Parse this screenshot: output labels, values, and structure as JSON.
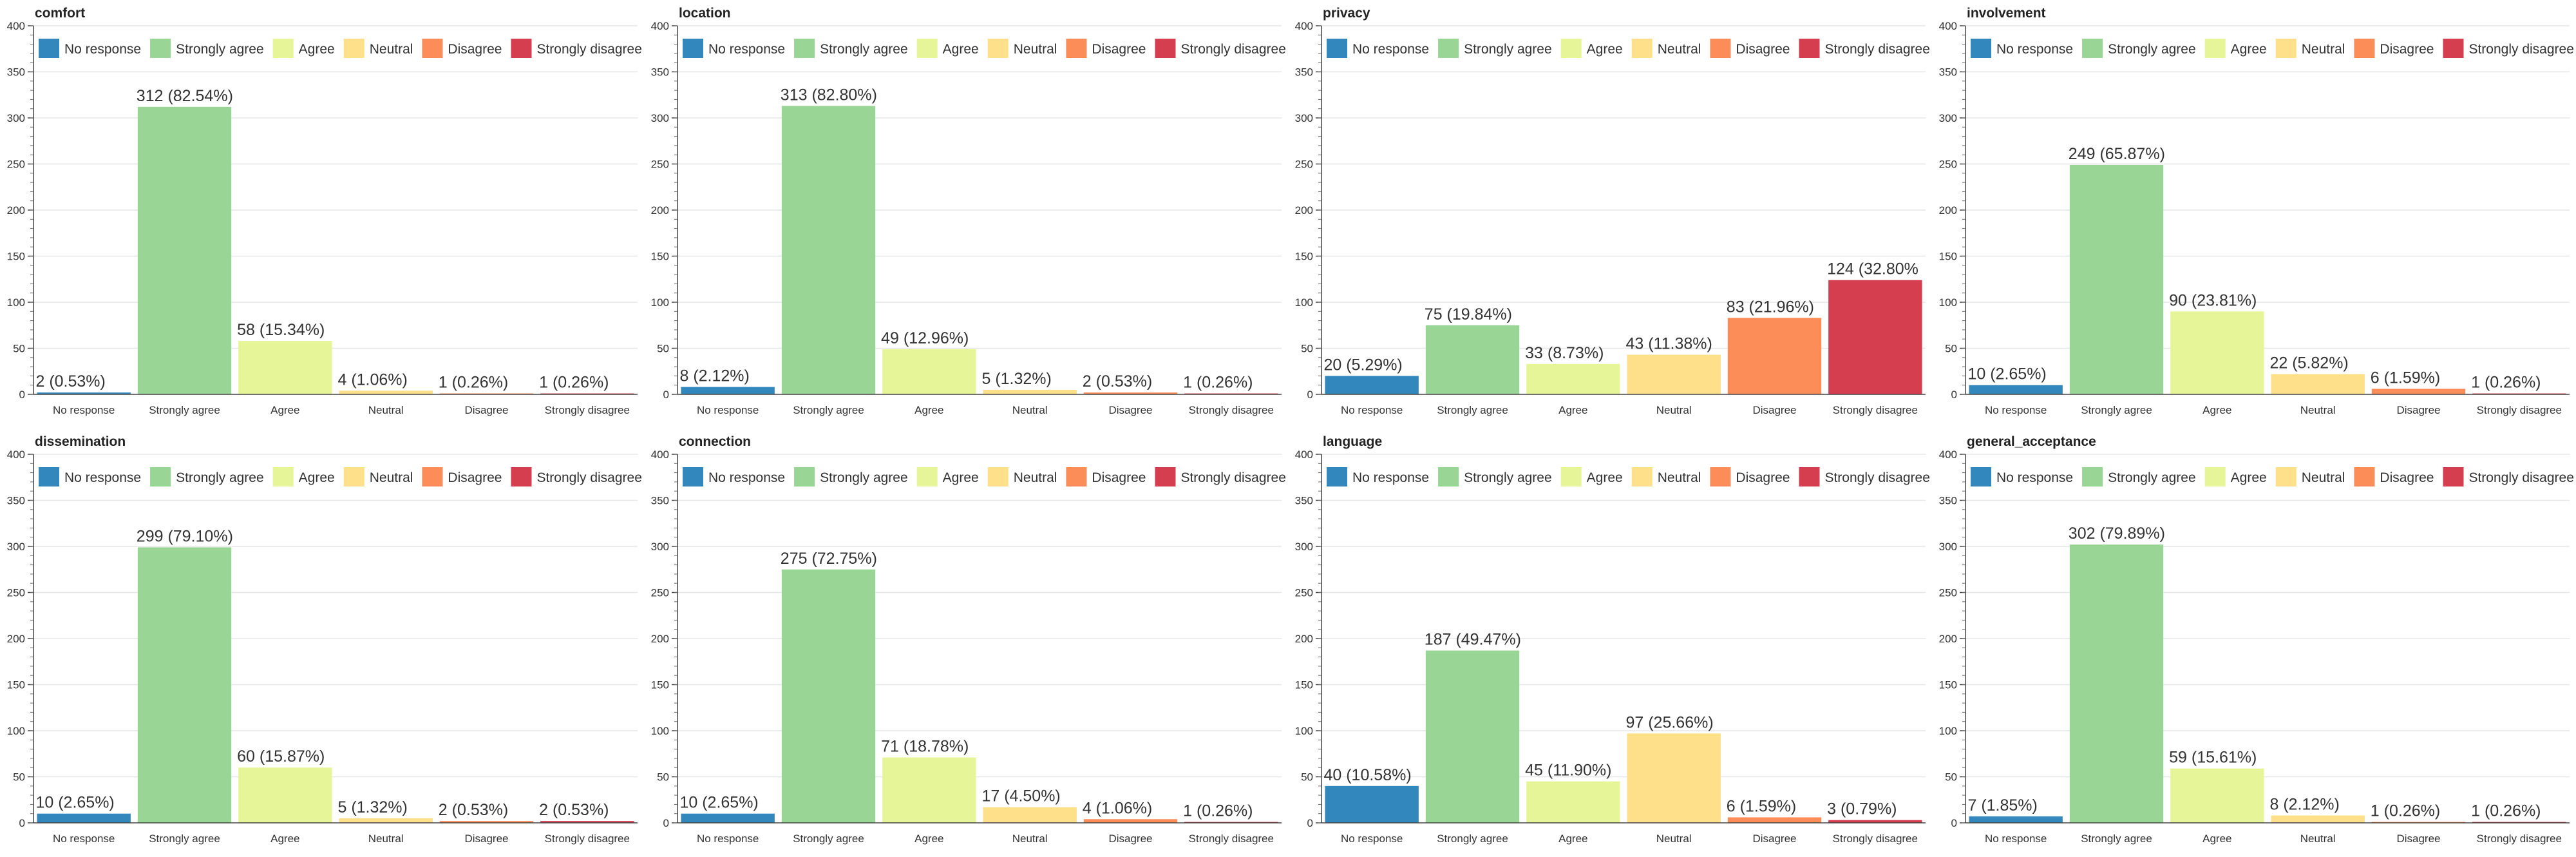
{
  "colors": {
    "No response": "#3288bd",
    "Strongly agree": "#99d594",
    "Agree": "#e6f598",
    "Neutral": "#fee08b",
    "Disagree": "#fc8d59",
    "Strongly disagree": "#d53e4f"
  },
  "chart_data": [
    {
      "type": "bar",
      "title": "comfort",
      "categories": [
        "No response",
        "Strongly agree",
        "Agree",
        "Neutral",
        "Disagree",
        "Strongly disagree"
      ],
      "values": [
        2,
        312,
        58,
        4,
        1,
        1
      ],
      "labels": [
        "2 (0.53%)",
        "312 (82.54%)",
        "58 (15.34%)",
        "4 (1.06%)",
        "1 (0.26%)",
        "1 (0.26%)"
      ],
      "legend": [
        "No response",
        "Strongly agree",
        "Agree",
        "Neutral",
        "Disagree",
        "Strongly disagree"
      ],
      "ylim": [
        0,
        400
      ],
      "yticks": [
        "0",
        "50",
        "100",
        "150",
        "200",
        "250",
        "300",
        "350",
        "400"
      ]
    },
    {
      "type": "bar",
      "title": "location",
      "categories": [
        "No response",
        "Strongly agree",
        "Agree",
        "Neutral",
        "Disagree",
        "Strongly disagree"
      ],
      "values": [
        8,
        313,
        49,
        5,
        2,
        1
      ],
      "labels": [
        "8 (2.12%)",
        "313 (82.80%)",
        "49 (12.96%)",
        "5 (1.32%)",
        "2 (0.53%)",
        "1 (0.26%)"
      ],
      "legend": [
        "No response",
        "Strongly agree",
        "Agree",
        "Neutral",
        "Disagree",
        "Strongly disagree"
      ],
      "ylim": [
        0,
        400
      ],
      "yticks": [
        "0",
        "50",
        "100",
        "150",
        "200",
        "250",
        "300",
        "350",
        "400"
      ]
    },
    {
      "type": "bar",
      "title": "privacy",
      "categories": [
        "No response",
        "Strongly agree",
        "Agree",
        "Neutral",
        "Disagree",
        "Strongly disagree"
      ],
      "values": [
        20,
        75,
        33,
        43,
        83,
        124
      ],
      "labels": [
        "20 (5.29%)",
        "75 (19.84%)",
        "33 (8.73%)",
        "43 (11.38%)",
        "83 (21.96%)",
        "124 (32.80%"
      ],
      "legend": [
        "No response",
        "Strongly agree",
        "Agree",
        "Neutral",
        "Disagree",
        "Strongly disagree"
      ],
      "ylim": [
        0,
        400
      ],
      "yticks": [
        "0",
        "50",
        "100",
        "150",
        "200",
        "250",
        "300",
        "350",
        "400"
      ]
    },
    {
      "type": "bar",
      "title": "involvement",
      "categories": [
        "No response",
        "Strongly agree",
        "Agree",
        "Neutral",
        "Disagree",
        "Strongly disagree"
      ],
      "values": [
        10,
        249,
        90,
        22,
        6,
        1
      ],
      "labels": [
        "10 (2.65%)",
        "249 (65.87%)",
        "90 (23.81%)",
        "22 (5.82%)",
        "6 (1.59%)",
        "1 (0.26%)"
      ],
      "legend": [
        "No response",
        "Strongly agree",
        "Agree",
        "Neutral",
        "Disagree",
        "Strongly disagree"
      ],
      "ylim": [
        0,
        400
      ],
      "yticks": [
        "0",
        "50",
        "100",
        "150",
        "200",
        "250",
        "300",
        "350",
        "400"
      ]
    },
    {
      "type": "bar",
      "title": "dissemination",
      "categories": [
        "No response",
        "Strongly agree",
        "Agree",
        "Neutral",
        "Disagree",
        "Strongly disagree"
      ],
      "values": [
        10,
        299,
        60,
        5,
        2,
        2
      ],
      "labels": [
        "10 (2.65%)",
        "299 (79.10%)",
        "60 (15.87%)",
        "5 (1.32%)",
        "2 (0.53%)",
        "2 (0.53%)"
      ],
      "legend": [
        "No response",
        "Strongly agree",
        "Agree",
        "Neutral",
        "Disagree",
        "Strongly disagree"
      ],
      "ylim": [
        0,
        400
      ],
      "yticks": [
        "0",
        "50",
        "100",
        "150",
        "200",
        "250",
        "300",
        "350",
        "400"
      ]
    },
    {
      "type": "bar",
      "title": "connection",
      "categories": [
        "No response",
        "Strongly agree",
        "Agree",
        "Neutral",
        "Disagree",
        "Strongly disagree"
      ],
      "values": [
        10,
        275,
        71,
        17,
        4,
        1
      ],
      "labels": [
        "10 (2.65%)",
        "275 (72.75%)",
        "71 (18.78%)",
        "17 (4.50%)",
        "4 (1.06%)",
        "1 (0.26%)"
      ],
      "legend": [
        "No response",
        "Strongly agree",
        "Agree",
        "Neutral",
        "Disagree",
        "Strongly disagree"
      ],
      "ylim": [
        0,
        400
      ],
      "yticks": [
        "0",
        "50",
        "100",
        "150",
        "200",
        "250",
        "300",
        "350",
        "400"
      ]
    },
    {
      "type": "bar",
      "title": "language",
      "categories": [
        "No response",
        "Strongly agree",
        "Agree",
        "Neutral",
        "Disagree",
        "Strongly disagree"
      ],
      "values": [
        40,
        187,
        45,
        97,
        6,
        3
      ],
      "labels": [
        "40 (10.58%)",
        "187 (49.47%)",
        "45 (11.90%)",
        "97 (25.66%)",
        "6 (1.59%)",
        "3 (0.79%)"
      ],
      "legend": [
        "No response",
        "Strongly agree",
        "Agree",
        "Neutral",
        "Disagree",
        "Strongly disagree"
      ],
      "ylim": [
        0,
        400
      ],
      "yticks": [
        "0",
        "50",
        "100",
        "150",
        "200",
        "250",
        "300",
        "350",
        "400"
      ]
    },
    {
      "type": "bar",
      "title": "general_acceptance",
      "categories": [
        "No response",
        "Strongly agree",
        "Agree",
        "Neutral",
        "Disagree",
        "Strongly disagree"
      ],
      "values": [
        7,
        302,
        59,
        8,
        1,
        1
      ],
      "labels": [
        "7 (1.85%)",
        "302 (79.89%)",
        "59 (15.61%)",
        "8 (2.12%)",
        "1 (0.26%)",
        "1 (0.26%)"
      ],
      "legend": [
        "No response",
        "Strongly agree",
        "Agree",
        "Neutral",
        "Disagree",
        "Strongly disagree"
      ],
      "ylim": [
        0,
        400
      ],
      "yticks": [
        "0",
        "50",
        "100",
        "150",
        "200",
        "250",
        "300",
        "350",
        "400"
      ]
    }
  ]
}
